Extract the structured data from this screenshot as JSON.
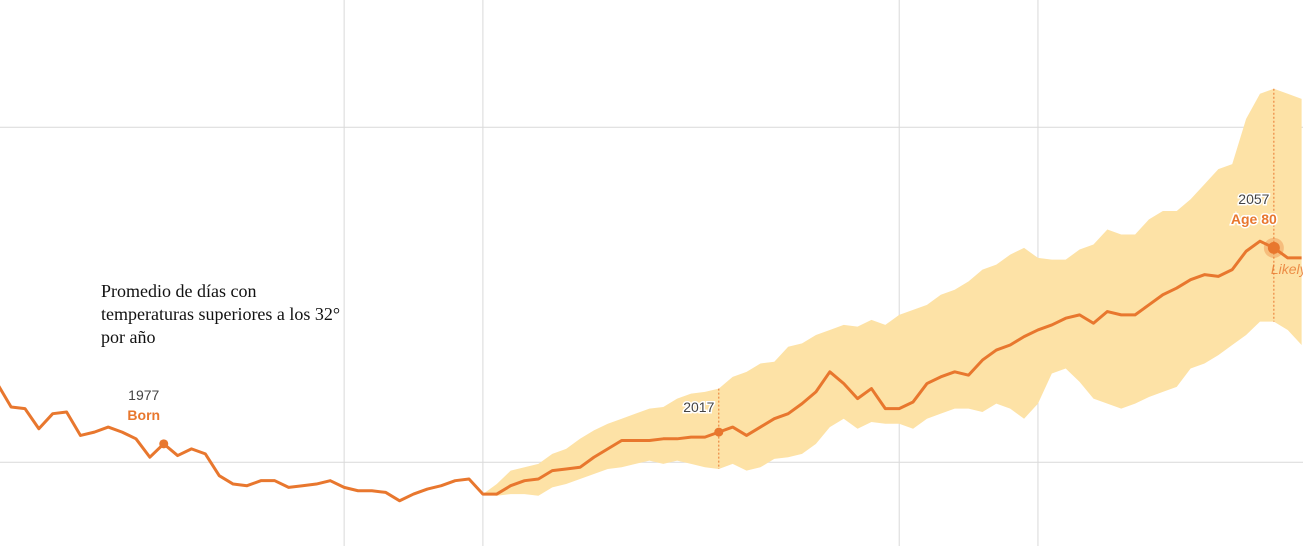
{
  "chart_data": {
    "type": "line",
    "subtitle": "Promedio de días con temperaturas superiores a los 32° por año",
    "x": [
      1965,
      1966,
      1967,
      1968,
      1969,
      1970,
      1971,
      1972,
      1973,
      1974,
      1975,
      1976,
      1977,
      1978,
      1979,
      1980,
      1981,
      1982,
      1983,
      1984,
      1985,
      1986,
      1987,
      1988,
      1989,
      1990,
      1991,
      1992,
      1993,
      1994,
      1995,
      1996,
      1997,
      1998,
      1999,
      2000,
      2001,
      2002,
      2003,
      2004,
      2005,
      2006,
      2007,
      2008,
      2009,
      2010,
      2011,
      2012,
      2013,
      2014,
      2015,
      2016,
      2017,
      2018,
      2019,
      2020,
      2021,
      2022,
      2023,
      2024,
      2025,
      2026,
      2027,
      2028,
      2029,
      2030,
      2031,
      2032,
      2033,
      2034,
      2035,
      2036,
      2037,
      2038,
      2039,
      2040,
      2041,
      2042,
      2043,
      2044,
      2045,
      2046,
      2047,
      2048,
      2049,
      2050,
      2051,
      2052,
      2053,
      2054,
      2055,
      2056,
      2057,
      2058,
      2059
    ],
    "values": [
      24.7,
      23.3,
      23.2,
      22.0,
      22.9,
      23.0,
      21.6,
      21.8,
      22.1,
      21.8,
      21.4,
      20.3,
      21.1,
      20.4,
      20.8,
      20.5,
      19.2,
      18.7,
      18.6,
      18.9,
      18.9,
      18.5,
      18.6,
      18.7,
      18.9,
      18.5,
      18.3,
      18.3,
      18.2,
      17.7,
      18.1,
      18.4,
      18.6,
      18.9,
      19.0,
      18.1,
      18.1,
      18.6,
      18.9,
      19.0,
      19.5,
      19.6,
      19.7,
      20.3,
      20.8,
      21.3,
      21.3,
      21.3,
      21.4,
      21.4,
      21.5,
      21.5,
      21.8,
      22.1,
      21.6,
      22.1,
      22.6,
      22.9,
      23.5,
      24.2,
      25.4,
      24.7,
      23.8,
      24.4,
      23.2,
      23.2,
      23.6,
      24.7,
      25.1,
      25.4,
      25.2,
      26.1,
      26.7,
      27.0,
      27.5,
      27.9,
      28.2,
      28.6,
      28.8,
      28.3,
      29.0,
      28.8,
      28.8,
      29.4,
      30.0,
      30.4,
      30.9,
      31.2,
      31.1,
      31.5,
      32.6,
      33.2,
      32.8,
      32.2,
      32.2
    ],
    "color": "#e8772e",
    "band": {
      "color": "#fde2a6",
      "upper": [
        null,
        null,
        null,
        null,
        null,
        null,
        null,
        null,
        null,
        null,
        null,
        null,
        null,
        null,
        null,
        null,
        null,
        null,
        null,
        null,
        null,
        null,
        null,
        null,
        null,
        null,
        null,
        null,
        null,
        null,
        null,
        null,
        null,
        null,
        null,
        18.1,
        18.7,
        19.5,
        19.7,
        19.9,
        20.5,
        20.8,
        21.4,
        21.9,
        22.3,
        22.6,
        22.9,
        23.2,
        23.3,
        23.8,
        24.1,
        24.2,
        24.4,
        25.1,
        25.4,
        25.9,
        26.0,
        26.9,
        27.1,
        27.6,
        27.9,
        28.2,
        28.1,
        28.5,
        28.2,
        28.8,
        29.1,
        29.4,
        30.0,
        30.3,
        30.8,
        31.5,
        31.8,
        32.4,
        32.8,
        32.2,
        32.1,
        32.1,
        32.7,
        33.0,
        33.9,
        33.6,
        33.6,
        34.5,
        35.0,
        35.0,
        35.7,
        36.6,
        37.5,
        37.8,
        40.5,
        42.0,
        42.3,
        42.0,
        41.7
      ],
      "lower": [
        null,
        null,
        null,
        null,
        null,
        null,
        null,
        null,
        null,
        null,
        null,
        null,
        null,
        null,
        null,
        null,
        null,
        null,
        null,
        null,
        null,
        null,
        null,
        null,
        null,
        null,
        null,
        null,
        null,
        null,
        null,
        null,
        null,
        null,
        null,
        18.1,
        18.0,
        18.1,
        18.1,
        18.0,
        18.5,
        18.7,
        19.0,
        19.3,
        19.6,
        19.7,
        19.9,
        20.1,
        19.9,
        20.1,
        19.9,
        19.7,
        19.6,
        19.9,
        19.5,
        19.7,
        20.2,
        20.3,
        20.5,
        21.1,
        22.1,
        22.6,
        22.0,
        22.4,
        22.3,
        22.3,
        22.0,
        22.6,
        22.9,
        23.2,
        23.2,
        23.0,
        23.5,
        23.2,
        22.6,
        23.5,
        25.3,
        25.6,
        24.8,
        23.8,
        23.5,
        23.2,
        23.5,
        23.9,
        24.2,
        24.5,
        25.6,
        25.9,
        26.4,
        27.0,
        27.6,
        28.4,
        28.4,
        27.9,
        27.0
      ]
    },
    "annotations": [
      {
        "x": 1977,
        "label": "Born"
      },
      {
        "x": 2017
      },
      {
        "x": 2057,
        "label": "Age 80",
        "note": "Likely"
      }
    ],
    "xlim": [
      1965.2,
      2059.1
    ],
    "ylim": [
      15.0,
      47.6
    ],
    "xgrid": [
      1990,
      2000,
      2030,
      2040
    ],
    "ygrid": [
      20,
      40
    ],
    "grid": true
  }
}
